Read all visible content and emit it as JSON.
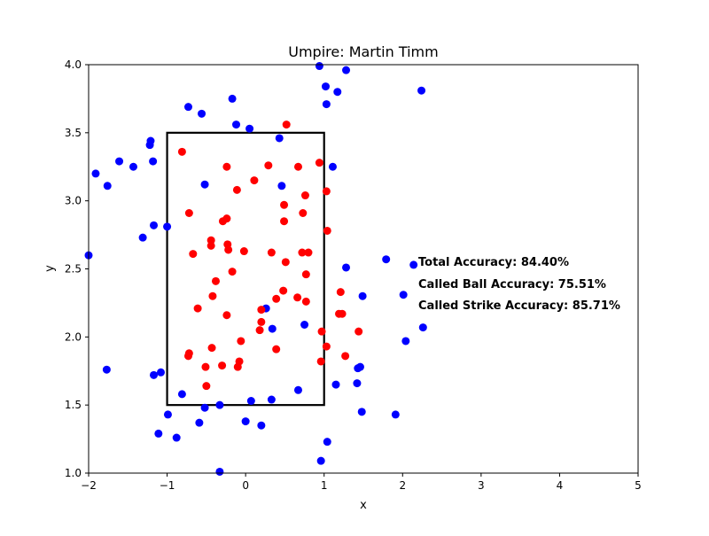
{
  "chart_data": {
    "type": "scatter",
    "title": "Umpire: Martin Timm",
    "xlabel": "x",
    "ylabel": "y",
    "xlim": [
      -2,
      5
    ],
    "ylim": [
      1.0,
      4.0
    ],
    "xticks": [
      "−2",
      "−1",
      "0",
      "1",
      "2",
      "3",
      "4",
      "5"
    ],
    "yticks": [
      "1.0",
      "1.5",
      "2.0",
      "2.5",
      "3.0",
      "3.5",
      "4.0"
    ],
    "grid": false,
    "strike_zone": {
      "x": [
        -1,
        1
      ],
      "y": [
        1.5,
        3.5
      ]
    },
    "annotations": [
      "Total Accuracy: 84.40%",
      "Called Ball Accuracy: 75.51%",
      "Called Strike Accuracy: 85.71%"
    ],
    "colors": {
      "strike": "#ff0000",
      "ball": "#0000ff",
      "zone": "#000000"
    },
    "series": [
      {
        "color": "#0000ff",
        "points": [
          [
            -2.0,
            2.6
          ],
          [
            -1.91,
            3.2
          ],
          [
            -1.76,
            3.11
          ],
          [
            -1.61,
            3.29
          ],
          [
            -1.43,
            3.25
          ],
          [
            -1.31,
            2.73
          ],
          [
            -1.22,
            3.41
          ],
          [
            -1.21,
            3.44
          ],
          [
            -1.18,
            3.29
          ],
          [
            -1.17,
            2.82
          ],
          [
            -1.0,
            2.81
          ],
          [
            -0.73,
            3.69
          ],
          [
            -0.56,
            3.64
          ],
          [
            -0.52,
            3.12
          ],
          [
            -0.17,
            3.75
          ],
          [
            -0.12,
            3.56
          ],
          [
            0.05,
            3.53
          ],
          [
            0.43,
            3.46
          ],
          [
            0.46,
            3.11
          ],
          [
            0.94,
            3.99
          ],
          [
            1.02,
            3.84
          ],
          [
            1.03,
            3.71
          ],
          [
            1.11,
            3.25
          ],
          [
            1.17,
            3.8
          ],
          [
            1.28,
            3.96
          ],
          [
            2.24,
            3.81
          ],
          [
            1.28,
            2.51
          ],
          [
            1.49,
            2.3
          ],
          [
            1.79,
            2.57
          ],
          [
            2.01,
            2.31
          ],
          [
            2.14,
            2.53
          ],
          [
            2.04,
            1.97
          ],
          [
            2.26,
            2.07
          ],
          [
            0.75,
            2.09
          ],
          [
            0.34,
            2.06
          ],
          [
            0.26,
            2.21
          ],
          [
            -1.77,
            1.76
          ],
          [
            -1.17,
            1.72
          ],
          [
            -1.08,
            1.74
          ],
          [
            -0.81,
            1.58
          ],
          [
            -0.52,
            1.48
          ],
          [
            -0.33,
            1.5
          ],
          [
            -0.99,
            1.43
          ],
          [
            -1.11,
            1.29
          ],
          [
            -0.88,
            1.26
          ],
          [
            -0.59,
            1.37
          ],
          [
            0.0,
            1.38
          ],
          [
            0.07,
            1.53
          ],
          [
            0.2,
            1.35
          ],
          [
            0.33,
            1.54
          ],
          [
            0.67,
            1.61
          ],
          [
            1.04,
            1.23
          ],
          [
            0.96,
            1.09
          ],
          [
            -0.33,
            1.01
          ],
          [
            1.15,
            1.65
          ],
          [
            1.42,
            1.66
          ],
          [
            1.43,
            1.77
          ],
          [
            1.46,
            1.78
          ],
          [
            1.48,
            1.45
          ],
          [
            1.91,
            1.43
          ]
        ]
      },
      {
        "color": "#ff0000",
        "points": [
          [
            -0.81,
            3.36
          ],
          [
            -0.24,
            3.25
          ],
          [
            0.29,
            3.26
          ],
          [
            0.52,
            3.56
          ],
          [
            0.67,
            3.25
          ],
          [
            0.94,
            3.28
          ],
          [
            1.03,
            3.07
          ],
          [
            0.76,
            3.04
          ],
          [
            0.11,
            3.15
          ],
          [
            -0.11,
            3.08
          ],
          [
            -0.72,
            2.91
          ],
          [
            -0.29,
            2.85
          ],
          [
            -0.24,
            2.87
          ],
          [
            0.49,
            2.97
          ],
          [
            0.49,
            2.85
          ],
          [
            0.73,
            2.91
          ],
          [
            1.04,
            2.78
          ],
          [
            -0.44,
            2.71
          ],
          [
            -0.44,
            2.67
          ],
          [
            -0.23,
            2.68
          ],
          [
            -0.22,
            2.64
          ],
          [
            -0.02,
            2.63
          ],
          [
            -0.67,
            2.61
          ],
          [
            0.33,
            2.62
          ],
          [
            0.72,
            2.62
          ],
          [
            0.8,
            2.62
          ],
          [
            0.51,
            2.55
          ],
          [
            -0.17,
            2.48
          ],
          [
            0.77,
            2.46
          ],
          [
            -0.38,
            2.41
          ],
          [
            0.48,
            2.34
          ],
          [
            -0.42,
            2.3
          ],
          [
            0.39,
            2.28
          ],
          [
            0.66,
            2.29
          ],
          [
            0.77,
            2.26
          ],
          [
            1.21,
            2.33
          ],
          [
            0.2,
            2.2
          ],
          [
            -0.61,
            2.21
          ],
          [
            -0.24,
            2.16
          ],
          [
            1.19,
            2.17
          ],
          [
            1.23,
            2.17
          ],
          [
            0.2,
            2.11
          ],
          [
            0.18,
            2.05
          ],
          [
            0.97,
            2.04
          ],
          [
            1.44,
            2.04
          ],
          [
            -0.06,
            1.97
          ],
          [
            1.03,
            1.93
          ],
          [
            -0.43,
            1.92
          ],
          [
            0.39,
            1.91
          ],
          [
            -0.72,
            1.88
          ],
          [
            -0.73,
            1.86
          ],
          [
            1.27,
            1.86
          ],
          [
            -0.08,
            1.82
          ],
          [
            0.96,
            1.82
          ],
          [
            -0.1,
            1.78
          ],
          [
            -0.3,
            1.79
          ],
          [
            -0.51,
            1.78
          ],
          [
            -0.5,
            1.64
          ]
        ]
      }
    ]
  }
}
